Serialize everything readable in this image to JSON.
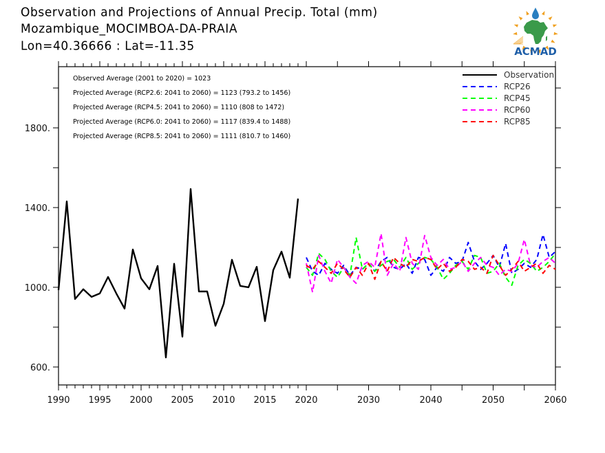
{
  "header": {
    "title": "Observation and Projections of Annual Precip. Total (mm)",
    "station": "Mozambique_MOCIMBOA-DA-PRAIA",
    "coords": "Lon=40.36666 : Lat=-11.35"
  },
  "logo": {
    "text": "ACMAD",
    "colors": {
      "africa": "#3a9a4a",
      "sun": "#f0a020",
      "drop": "#2a7fc0",
      "text": "#1f5fa8"
    }
  },
  "stats": [
    "Observed Average (2001 to 2020) = 1023",
    "Projected Average (RCP2.6: 2041 to 2060) = 1123 (793.2 to 1456)",
    "Projected Average (RCP4.5: 2041 to 2060) = 1110 (808 to 1472)",
    "Projected Average (RCP6.0: 2041 to 2060) = 1117 (839.4 to 1488)",
    "Projected Average (RCP8.5: 2041 to 2060) = 1111 (810.7 to 1460)"
  ],
  "chart_data": {
    "type": "line",
    "title": "Observation and Projections of Annual Precip. Total (mm)",
    "xlabel": "",
    "ylabel": "",
    "ylim": [
      510,
      2107
    ],
    "yticks": [
      600,
      1000,
      1400,
      1800
    ],
    "ytick_labels": [
      "600.",
      "1000.",
      "1400.",
      "1800."
    ],
    "yminor_ticks": [
      800,
      1200,
      1600,
      2000
    ],
    "xticks_left": [
      1990,
      1995,
      2000,
      2005,
      2010,
      2015,
      2020
    ],
    "xticks_right": [
      2030,
      2040,
      2050,
      2060
    ],
    "xtick_labels": [
      "1990",
      "1995",
      "2000",
      "2005",
      "2010",
      "2015",
      "2020",
      "2030",
      "2040",
      "2050",
      "2060"
    ],
    "x_segments": [
      {
        "range": [
          1990,
          2020
        ],
        "note": "observation period"
      },
      {
        "range": [
          2020,
          2060
        ],
        "note": "projection period"
      }
    ],
    "grid": false,
    "legend_position": "top-right",
    "series": [
      {
        "name": "Observation",
        "color": "#000000",
        "dash": "solid",
        "x": [
          1990,
          1991,
          1992,
          1993,
          1994,
          1995,
          1996,
          1997,
          1998,
          1999,
          2000,
          2001,
          2002,
          2003,
          2004,
          2005,
          2006,
          2007,
          2008,
          2009,
          2010,
          2011,
          2012,
          2013,
          2014,
          2015,
          2016,
          2017,
          2018,
          2019
        ],
        "values": [
          986,
          1431,
          941,
          990,
          952,
          969,
          1052,
          969,
          893,
          1190,
          1045,
          990,
          1107,
          648,
          1118,
          752,
          1493,
          979,
          979,
          807,
          917,
          1138,
          1007,
          1000,
          1103,
          830,
          1086,
          1179,
          1048,
          1445
        ]
      },
      {
        "name": "RCP26",
        "color": "#0000ff",
        "dash": "dashed",
        "x_start": 2020,
        "values": [
          1150,
          1080,
          1060,
          1120,
          1090,
          1070,
          1110,
          1060,
          1100,
          1090,
          1120,
          1080,
          1130,
          1150,
          1100,
          1090,
          1120,
          1070,
          1150,
          1140,
          1060,
          1100,
          1080,
          1150,
          1120,
          1130,
          1225,
          1130,
          1090,
          1120,
          1160,
          1100,
          1220,
          1070,
          1090,
          1120,
          1100,
          1140,
          1265,
          1150,
          1180
        ]
      },
      {
        "name": "RCP45",
        "color": "#00ff00",
        "dash": "dashed",
        "x_start": 2020,
        "values": [
          1100,
          1060,
          1170,
          1140,
          1080,
          1050,
          1100,
          1060,
          1250,
          1090,
          1120,
          1080,
          1110,
          1130,
          1140,
          1100,
          1150,
          1090,
          1120,
          1150,
          1140,
          1100,
          1040,
          1070,
          1110,
          1130,
          1090,
          1160,
          1150,
          1070,
          1080,
          1120,
          1050,
          1010,
          1110,
          1140,
          1120,
          1080,
          1100,
          1130,
          1170
        ]
      },
      {
        "name": "RCP60",
        "color": "#ff00ff",
        "dash": "dashed",
        "x_start": 2020,
        "values": [
          1120,
          975,
          1160,
          1080,
          1020,
          1140,
          1100,
          1050,
          1020,
          1110,
          1130,
          1100,
          1270,
          1060,
          1120,
          1080,
          1250,
          1120,
          1090,
          1260,
          1150,
          1110,
          1140,
          1090,
          1100,
          1130,
          1080,
          1120,
          1150,
          1110,
          1100,
          1060,
          1090,
          1080,
          1120,
          1240,
          1110,
          1100,
          1130,
          1150,
          1120
        ]
      },
      {
        "name": "RCP85",
        "color": "#ff0000",
        "dash": "dashed",
        "x_start": 2020,
        "values": [
          1110,
          1090,
          1130,
          1100,
          1070,
          1120,
          1090,
          1050,
          1100,
          1060,
          1120,
          1040,
          1130,
          1080,
          1150,
          1120,
          1100,
          1140,
          1130,
          1150,
          1140,
          1090,
          1120,
          1080,
          1100,
          1140,
          1130,
          1090,
          1100,
          1070,
          1160,
          1110,
          1060,
          1090,
          1130,
          1080,
          1100,
          1120,
          1070,
          1110,
          1090
        ]
      }
    ]
  }
}
